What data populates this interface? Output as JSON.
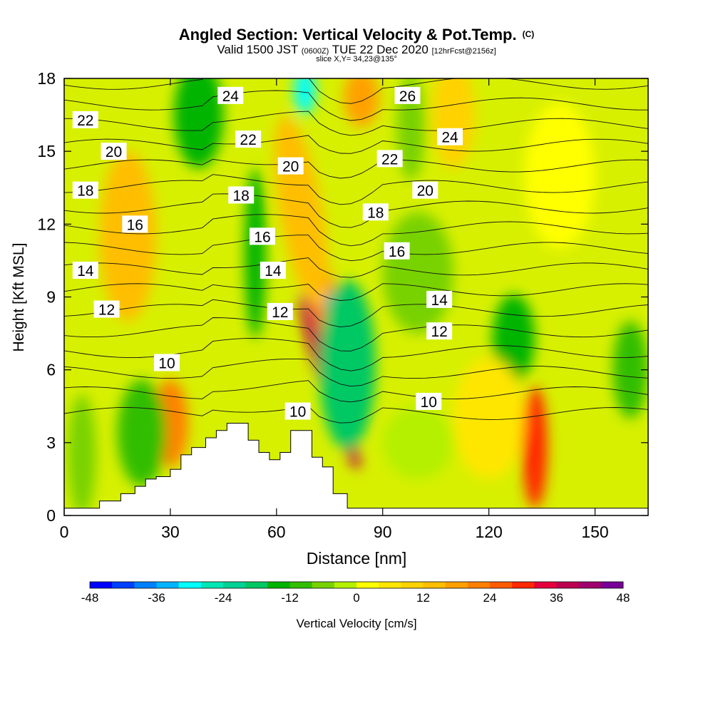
{
  "header": {
    "title": "Angled Section: Vertical Velocity & Pot.Temp.",
    "title_mark": "(C)",
    "subtitle_main": "Valid 1500 JST",
    "subtitle_z": "(0600Z)",
    "subtitle_date": "TUE 22 Dec 2020",
    "subtitle_fcst": "[12hrFcst@2156z]",
    "slice": "slice X,Y= 34,23@135°"
  },
  "chart_data": {
    "type": "heatmap",
    "title": "Angled Section: Vertical Velocity & Pot.Temp.",
    "xlabel": "Distance [nm]",
    "ylabel": "Height [Kft MSL]",
    "xlim": [
      0,
      165
    ],
    "ylim": [
      0,
      18
    ],
    "x_ticks": [
      "0",
      "30",
      "60",
      "90",
      "120",
      "150"
    ],
    "y_ticks": [
      "0",
      "3",
      "6",
      "9",
      "12",
      "15",
      "18"
    ],
    "colorbar": {
      "label": "Vertical Velocity [cm/s]",
      "tick_labels": [
        "-48",
        "-36",
        "-24",
        "-12",
        "0",
        "12",
        "24",
        "36",
        "48"
      ],
      "colors": [
        "#0000ff",
        "#0040ff",
        "#0080ff",
        "#00b4ff",
        "#00ffff",
        "#00e6b4",
        "#00d296",
        "#00c864",
        "#00b400",
        "#32be00",
        "#78d200",
        "#b4f000",
        "#ffff00",
        "#ffe600",
        "#ffd200",
        "#ffbe00",
        "#ffa000",
        "#ff8000",
        "#ff5a00",
        "#ff2800",
        "#e6003c",
        "#be0050",
        "#a0006e",
        "#780096"
      ]
    },
    "terrain": [
      [
        0,
        0.3
      ],
      [
        10,
        0.3
      ],
      [
        10,
        0.6
      ],
      [
        16,
        0.6
      ],
      [
        16,
        0.9
      ],
      [
        20,
        0.9
      ],
      [
        20,
        1.2
      ],
      [
        23,
        1.2
      ],
      [
        23,
        1.5
      ],
      [
        26,
        1.5
      ],
      [
        26,
        1.6
      ],
      [
        30,
        1.6
      ],
      [
        30,
        1.9
      ],
      [
        33,
        1.9
      ],
      [
        33,
        2.5
      ],
      [
        36,
        2.5
      ],
      [
        36,
        2.8
      ],
      [
        40,
        2.8
      ],
      [
        40,
        3.2
      ],
      [
        43,
        3.2
      ],
      [
        43,
        3.5
      ],
      [
        46,
        3.5
      ],
      [
        46,
        3.8
      ],
      [
        52,
        3.8
      ],
      [
        52,
        3.1
      ],
      [
        55,
        3.1
      ],
      [
        55,
        2.6
      ],
      [
        58,
        2.6
      ],
      [
        58,
        2.3
      ],
      [
        61,
        2.3
      ],
      [
        61,
        2.6
      ],
      [
        64,
        2.6
      ],
      [
        64,
        3.5
      ],
      [
        70,
        3.5
      ],
      [
        70,
        2.4
      ],
      [
        73,
        2.4
      ],
      [
        73,
        2.0
      ],
      [
        76,
        2.0
      ],
      [
        76,
        0.9
      ],
      [
        80,
        0.9
      ],
      [
        80,
        0.3
      ],
      [
        165,
        0.3
      ]
    ],
    "velocity_blobs": [
      {
        "x": 75,
        "y": 5.5,
        "rx": 3,
        "ry": 3.8,
        "value": 36,
        "rotate": -18
      },
      {
        "x": 73,
        "y": 9.0,
        "rx": 4,
        "ry": 4.5,
        "value": 20,
        "rotate": -15
      },
      {
        "x": 67,
        "y": 12.5,
        "rx": 6,
        "ry": 4,
        "value": 12,
        "rotate": -10
      },
      {
        "x": 78,
        "y": 7.0,
        "rx": 3.5,
        "ry": 2.2,
        "value": -36,
        "rotate": -10
      },
      {
        "x": 80,
        "y": 6.2,
        "rx": 8,
        "ry": 3.5,
        "value": -18,
        "rotate": 0
      },
      {
        "x": 84,
        "y": 17.2,
        "rx": 5,
        "ry": 1.2,
        "value": 18,
        "rotate": 0
      },
      {
        "x": 68,
        "y": 17.5,
        "rx": 3,
        "ry": 1,
        "value": -30,
        "rotate": 0
      },
      {
        "x": 30,
        "y": 3.8,
        "rx": 5,
        "ry": 1.8,
        "value": 22,
        "rotate": 0
      },
      {
        "x": 18,
        "y": 11.5,
        "rx": 8,
        "ry": 3.5,
        "value": 14,
        "rotate": 0
      },
      {
        "x": 110,
        "y": 16.5,
        "rx": 6,
        "ry": 2.2,
        "value": 10,
        "rotate": 0
      },
      {
        "x": 133,
        "y": 2.8,
        "rx": 3.5,
        "ry": 2.5,
        "value": 28,
        "rotate": 0
      },
      {
        "x": 54,
        "y": 10.8,
        "rx": 3,
        "ry": 3.5,
        "value": -15,
        "rotate": 0
      },
      {
        "x": 38,
        "y": 16.5,
        "rx": 7,
        "ry": 2.2,
        "value": -14,
        "rotate": 0
      },
      {
        "x": 22,
        "y": 3.4,
        "rx": 7,
        "ry": 2.2,
        "value": -11,
        "rotate": 0
      },
      {
        "x": 127,
        "y": 7.3,
        "rx": 6,
        "ry": 1.8,
        "value": -13,
        "rotate": 0
      },
      {
        "x": 100,
        "y": 10.0,
        "rx": 10,
        "ry": 2.5,
        "value": -6,
        "rotate": 0
      },
      {
        "x": 140,
        "y": 14.0,
        "rx": 10,
        "ry": 3,
        "value": 3,
        "rotate": 0
      },
      {
        "x": 120,
        "y": 4.0,
        "rx": 10,
        "ry": 2.5,
        "value": 4,
        "rotate": 0
      },
      {
        "x": 100,
        "y": 3.0,
        "rx": 10,
        "ry": 1.5,
        "value": -3,
        "rotate": 0
      },
      {
        "x": 160,
        "y": 6.0,
        "rx": 5,
        "ry": 2,
        "value": -10,
        "rotate": 0
      },
      {
        "x": 5,
        "y": 2.5,
        "rx": 4,
        "ry": 2.5,
        "value": -6,
        "rotate": 0
      },
      {
        "x": 98,
        "y": 16.0,
        "rx": 4,
        "ry": 2.2,
        "value": -8,
        "rotate": 0
      }
    ],
    "theta_contour_labels": [
      {
        "text": "22",
        "x": 6,
        "y": 16.3
      },
      {
        "text": "20",
        "x": 14,
        "y": 15.0
      },
      {
        "text": "18",
        "x": 6,
        "y": 13.4
      },
      {
        "text": "16",
        "x": 20,
        "y": 12.0
      },
      {
        "text": "14",
        "x": 6,
        "y": 10.1
      },
      {
        "text": "12",
        "x": 12,
        "y": 8.5
      },
      {
        "text": "10",
        "x": 29,
        "y": 6.3
      },
      {
        "text": "24",
        "x": 47,
        "y": 17.3
      },
      {
        "text": "22",
        "x": 52,
        "y": 15.5
      },
      {
        "text": "20",
        "x": 64,
        "y": 14.4
      },
      {
        "text": "18",
        "x": 50,
        "y": 13.2
      },
      {
        "text": "16",
        "x": 56,
        "y": 11.5
      },
      {
        "text": "14",
        "x": 59,
        "y": 10.1
      },
      {
        "text": "12",
        "x": 61,
        "y": 8.4
      },
      {
        "text": "10",
        "x": 66,
        "y": 4.3
      },
      {
        "text": "26",
        "x": 97,
        "y": 17.3
      },
      {
        "text": "24",
        "x": 109,
        "y": 15.6
      },
      {
        "text": "22",
        "x": 92,
        "y": 14.7
      },
      {
        "text": "20",
        "x": 102,
        "y": 13.4
      },
      {
        "text": "18",
        "x": 88,
        "y": 12.5
      },
      {
        "text": "16",
        "x": 94,
        "y": 10.9
      },
      {
        "text": "14",
        "x": 106,
        "y": 8.9
      },
      {
        "text": "12",
        "x": 106,
        "y": 7.6
      },
      {
        "text": "10",
        "x": 103,
        "y": 4.7
      }
    ],
    "grid": false
  }
}
